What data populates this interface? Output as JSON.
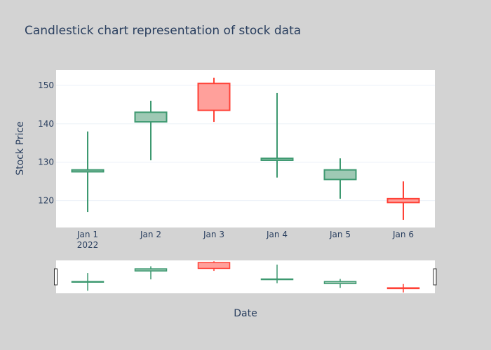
{
  "chart_data": {
    "type": "candlestick",
    "title": "Candlestick chart representation of stock data",
    "xlabel": "Date",
    "ylabel": "Stock Price",
    "ylim": [
      113,
      154
    ],
    "yticks": [
      120,
      130,
      140,
      150
    ],
    "x": [
      "Jan 1",
      "Jan 2",
      "Jan 3",
      "Jan 4",
      "Jan 5",
      "Jan 6"
    ],
    "x_year_label": "2022",
    "open": [
      127.5,
      140.5,
      150.5,
      130.5,
      125.5,
      120.5
    ],
    "high": [
      138,
      146,
      152,
      148,
      131,
      125
    ],
    "low": [
      117,
      130.5,
      140.5,
      126,
      120.5,
      115
    ],
    "close": [
      128,
      143,
      143.5,
      131,
      128,
      119.5
    ],
    "increasing_color": "#3d9970",
    "increasing_fill": "#9ec9b4",
    "decreasing_color": "#ff4136",
    "decreasing_fill": "#ffa09b",
    "rangeslider": true
  }
}
